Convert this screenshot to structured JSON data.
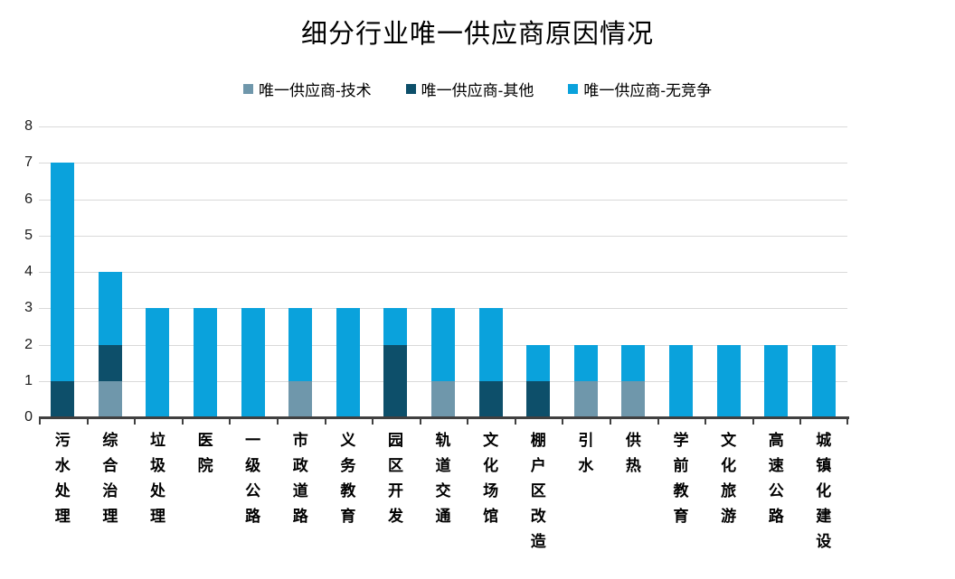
{
  "chart": {
    "title": "细分行业唯一供应商原因情况"
  },
  "chart_data": {
    "type": "bar",
    "stacked": true,
    "title": "细分行业唯一供应商原因情况",
    "xlabel": "",
    "ylabel": "",
    "ylim": [
      0,
      8
    ],
    "ytick_step": 1,
    "yticks": [
      0,
      1,
      2,
      3,
      4,
      5,
      6,
      7,
      8
    ],
    "grid": "horizontal",
    "legend_position": "top",
    "categories": [
      "污水处理",
      "综合治理",
      "垃圾处理",
      "医院",
      "一级公路",
      "市政道路",
      "义务教育",
      "园区开发",
      "轨道交通",
      "文化场馆",
      "棚户区改造",
      "引水",
      "供热",
      "学前教育",
      "文化旅游",
      "高速公路",
      "城镇化建设"
    ],
    "series": [
      {
        "name": "唯一供应商-技术",
        "color": "#6f97ab",
        "values": [
          0,
          1,
          0,
          0,
          0,
          1,
          0,
          0,
          1,
          0,
          0,
          1,
          1,
          0,
          0,
          0,
          0
        ]
      },
      {
        "name": "唯一供应商-其他",
        "color": "#0d4f6a",
        "values": [
          1,
          1,
          0,
          0,
          0,
          0,
          0,
          2,
          0,
          1,
          1,
          0,
          0,
          0,
          0,
          0,
          0
        ]
      },
      {
        "name": "唯一供应商-无竞争",
        "color": "#0aa2dc",
        "values": [
          6,
          2,
          3,
          3,
          3,
          2,
          3,
          1,
          2,
          2,
          1,
          1,
          1,
          2,
          2,
          2,
          2
        ]
      }
    ],
    "totals": [
      7,
      4,
      3,
      3,
      3,
      3,
      3,
      3,
      3,
      3,
      2,
      2,
      2,
      2,
      2,
      2,
      2
    ]
  },
  "style": {
    "gridline_color": "#d9d9d9",
    "axis_color": "#404040",
    "background": "#ffffff",
    "text_color": "#000000"
  }
}
